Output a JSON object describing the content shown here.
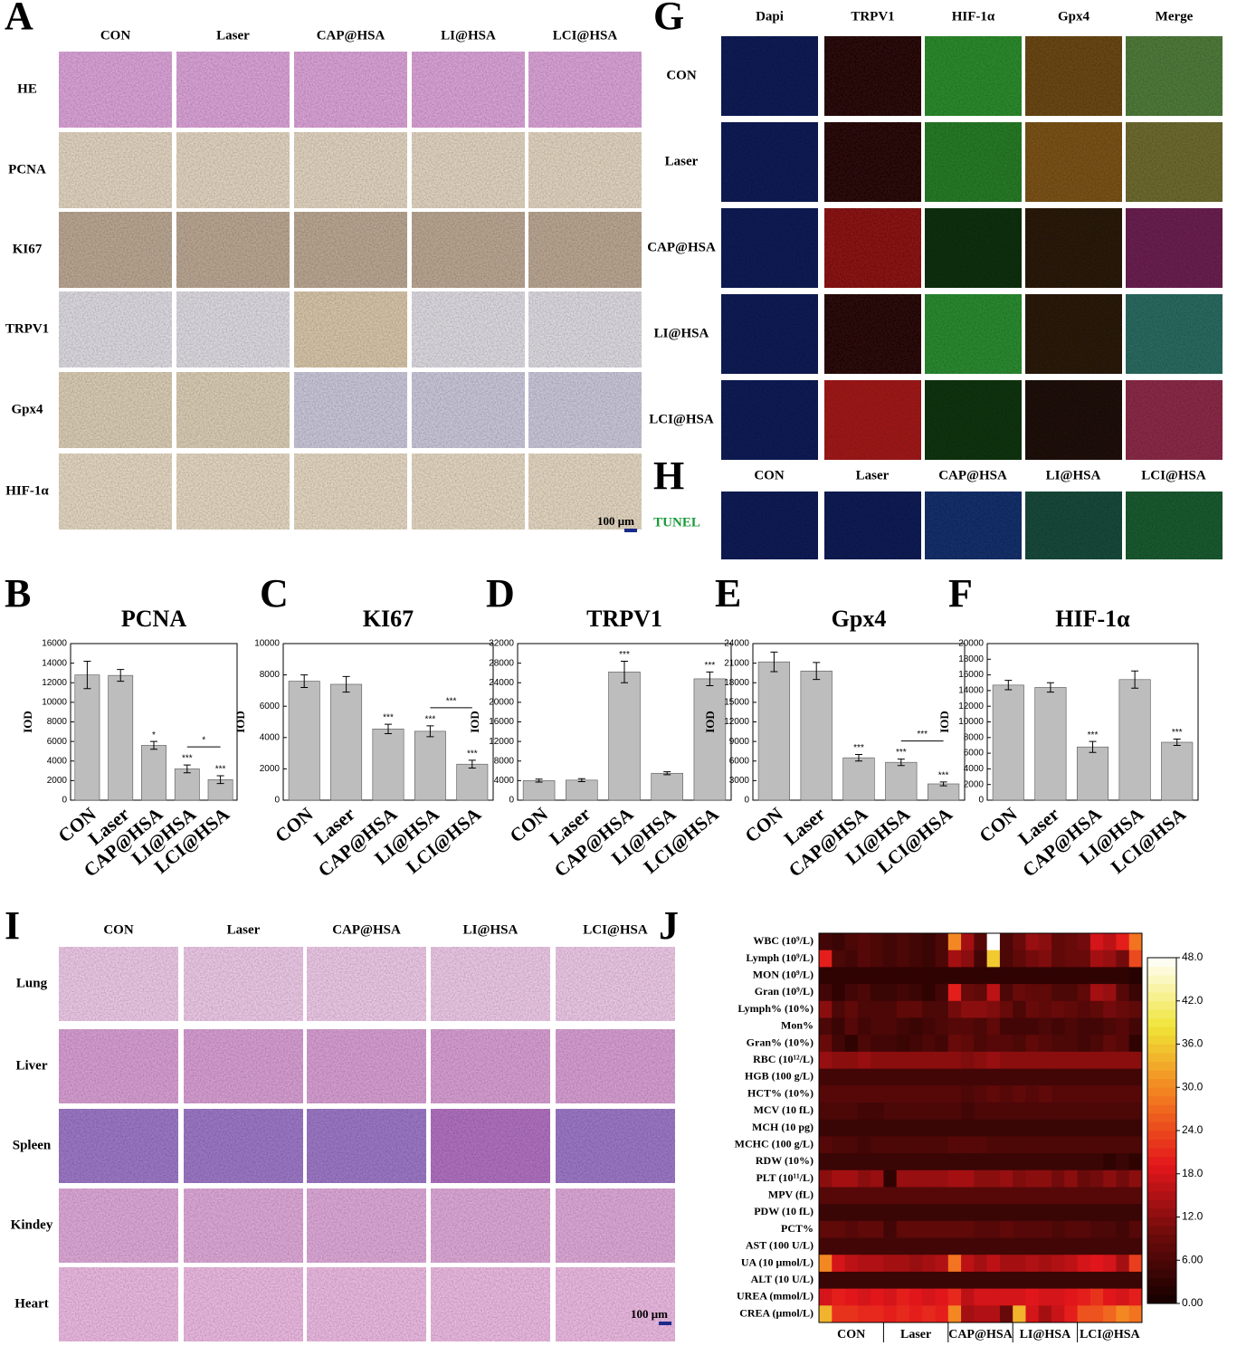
{
  "panel_a": {
    "letter": "A",
    "columns": [
      "CON",
      "Laser",
      "CAP@HSA",
      "LI@HSA",
      "LCI@HSA"
    ],
    "rows": [
      "HE",
      "PCNA",
      "KI67",
      "TRPV1",
      "Gpx4",
      "HIF-1α"
    ],
    "scale_bar": "100 μm"
  },
  "panel_g": {
    "letter": "G",
    "columns": [
      "Dapi",
      "TRPV1",
      "HIF-1α",
      "Gpx4",
      "Merge"
    ],
    "rows": [
      "CON",
      "Laser",
      "CAP@HSA",
      "LI@HSA",
      "LCI@HSA"
    ]
  },
  "panel_h": {
    "letter": "H",
    "columns": [
      "CON",
      "Laser",
      "CAP@HSA",
      "LI@HSA",
      "LCI@HSA"
    ],
    "rows": [
      "TUNEL"
    ]
  },
  "panel_i": {
    "letter": "I",
    "columns": [
      "CON",
      "Laser",
      "CAP@HSA",
      "LI@HSA",
      "LCI@HSA"
    ],
    "rows": [
      "Lung",
      "Liver",
      "Spleen",
      "Kindey",
      "Heart"
    ],
    "scale_bar": "100 μm"
  },
  "chart_data": [
    {
      "type": "bar",
      "panel": "B",
      "title": "PCNA",
      "y_label": "IOD",
      "categories": [
        "CON",
        "Laser",
        "CAP@HSA",
        "LI@HSA",
        "LCI@HSA"
      ],
      "values": [
        12800,
        12750,
        5600,
        3200,
        2100
      ],
      "errors": [
        1400,
        600,
        400,
        400,
        400
      ],
      "significance": [
        null,
        null,
        "*",
        "***",
        "***"
      ],
      "bracket_label": "*",
      "color": "#bdbdbd",
      "ylim": [
        0,
        16000
      ],
      "yticks": [
        0,
        2000,
        4000,
        6000,
        8000,
        10000,
        12000,
        14000,
        16000
      ]
    },
    {
      "type": "bar",
      "panel": "C",
      "title": "KI67",
      "y_label": "IOD",
      "categories": [
        "CON",
        "Laser",
        "CAP@HSA",
        "LI@HSA",
        "LCI@HSA"
      ],
      "values": [
        7600,
        7400,
        4550,
        4400,
        2300
      ],
      "errors": [
        400,
        500,
        300,
        350,
        250
      ],
      "significance": [
        null,
        null,
        "***",
        "***",
        "***"
      ],
      "bracket_label": "***",
      "color": "#bdbdbd",
      "ylim": [
        0,
        10000
      ],
      "yticks": [
        0,
        2000,
        4000,
        6000,
        8000,
        10000
      ]
    },
    {
      "type": "bar",
      "panel": "D",
      "title": "TRPV1",
      "y_label": "IOD",
      "categories": [
        "CON",
        "Laser",
        "CAP@HSA",
        "LI@HSA",
        "LCI@HSA"
      ],
      "values": [
        4000,
        4100,
        26200,
        5500,
        24800
      ],
      "errors": [
        300,
        300,
        2200,
        300,
        1400
      ],
      "significance": [
        null,
        null,
        "***",
        null,
        "***"
      ],
      "color": "#bdbdbd",
      "ylim": [
        0,
        32000
      ],
      "yticks": [
        0,
        4000,
        8000,
        12000,
        16000,
        20000,
        24000,
        28000,
        32000
      ]
    },
    {
      "type": "bar",
      "panel": "E",
      "title": "Gpx4",
      "y_label": "IOD",
      "categories": [
        "CON",
        "Laser",
        "CAP@HSA",
        "LI@HSA",
        "LCI@HSA"
      ],
      "values": [
        21200,
        19800,
        6500,
        5800,
        2500
      ],
      "errors": [
        1500,
        1300,
        500,
        500,
        300
      ],
      "significance": [
        null,
        null,
        "***",
        "***",
        "***"
      ],
      "bracket_label": "***",
      "color": "#bdbdbd",
      "ylim": [
        0,
        24000
      ],
      "yticks": [
        0,
        3000,
        6000,
        9000,
        12000,
        15000,
        18000,
        21000,
        24000
      ]
    },
    {
      "type": "bar",
      "panel": "F",
      "title": "HIF-1α",
      "y_label": "IOD",
      "categories": [
        "CON",
        "Laser",
        "CAP@HSA",
        "LI@HSA",
        "LCI@HSA"
      ],
      "values": [
        14700,
        14400,
        6800,
        15400,
        7400
      ],
      "errors": [
        600,
        600,
        700,
        1100,
        400
      ],
      "significance": [
        null,
        null,
        "***",
        null,
        "***"
      ],
      "color": "#bdbdbd",
      "ylim": [
        0,
        20000
      ],
      "yticks": [
        0,
        2000,
        4000,
        6000,
        8000,
        10000,
        12000,
        14000,
        16000,
        18000,
        20000
      ]
    },
    {
      "type": "heatmap",
      "panel": "J",
      "rows": [
        "WBC (10⁹/L)",
        "Lymph (10⁹/L)",
        "MON (10⁹/L)",
        "Gran (10⁹/L)",
        "Lymph% (10%)",
        "Mon%",
        "Gran% (10%)",
        "RBC (10¹²/L)",
        "HGB (100 g/L)",
        "HCT% (10%)",
        "MCV (10 fL)",
        "MCH (10 pg)",
        "MCHC (100 g/L)",
        "RDW (10%)",
        "PLT (10¹¹/L)",
        "MPV (fL)",
        "PDW (10 fL)",
        "PCT%",
        "AST (100 U/L)",
        "UA (10 μmol/L)",
        "ALT (10 U/L)",
        "UREA (mmol/L)",
        "CREA (μmol/L)"
      ],
      "column_groups": [
        "CON",
        "Laser",
        "CAP@HSA",
        "LI@HSA",
        "LCI@HSA"
      ],
      "values": [
        [
          5,
          4,
          6,
          7,
          6,
          5,
          6,
          5,
          4,
          6,
          30,
          14,
          7,
          48,
          6,
          9,
          13,
          12,
          8,
          9,
          10,
          18,
          16,
          20,
          28
        ],
        [
          20,
          6,
          5,
          7,
          6,
          5,
          6,
          5,
          4,
          6,
          14,
          12,
          5,
          36,
          6,
          8,
          10,
          11,
          8,
          9,
          9,
          14,
          13,
          10,
          24
        ],
        [
          3,
          3,
          3,
          3,
          3,
          3,
          3,
          3,
          3,
          3,
          3,
          3,
          3,
          3,
          3,
          3,
          3,
          3,
          3,
          3,
          3,
          3,
          3,
          3,
          2
        ],
        [
          5,
          3,
          5,
          6,
          4,
          4,
          5,
          4,
          3,
          5,
          20,
          9,
          8,
          16,
          6,
          9,
          8,
          8,
          6,
          6,
          8,
          14,
          13,
          7,
          4
        ],
        [
          12,
          6,
          8,
          6,
          6,
          6,
          8,
          8,
          6,
          6,
          10,
          12,
          12,
          11,
          9,
          6,
          9,
          8,
          9,
          8,
          7,
          8,
          10,
          9,
          8
        ],
        [
          6,
          4,
          7,
          5,
          6,
          6,
          5,
          4,
          5,
          6,
          7,
          7,
          6,
          8,
          5,
          5,
          5,
          6,
          5,
          6,
          5,
          5,
          6,
          7,
          5
        ],
        [
          9,
          5,
          3,
          6,
          5,
          5,
          4,
          5,
          6,
          5,
          9,
          8,
          6,
          7,
          7,
          6,
          8,
          7,
          6,
          6,
          5,
          6,
          8,
          7,
          3
        ],
        [
          13,
          12,
          12,
          13,
          12,
          12,
          12,
          12,
          12,
          12,
          12,
          11,
          12,
          13,
          12,
          12,
          12,
          12,
          12,
          12,
          12,
          12,
          12,
          12,
          12
        ],
        [
          5,
          5,
          5,
          5,
          5,
          5,
          5,
          5,
          5,
          5,
          5,
          5,
          5,
          5,
          5,
          5,
          5,
          5,
          5,
          5,
          5,
          5,
          5,
          5,
          5
        ],
        [
          7,
          7,
          7,
          7,
          7,
          7,
          7,
          7,
          7,
          7,
          7,
          6,
          7,
          8,
          7,
          8,
          7,
          8,
          7,
          7,
          7,
          7,
          7,
          7,
          7
        ],
        [
          6,
          6,
          6,
          5,
          5,
          6,
          6,
          6,
          6,
          6,
          6,
          5,
          6,
          6,
          6,
          6,
          6,
          6,
          6,
          6,
          6,
          6,
          6,
          6,
          6
        ],
        [
          4,
          4,
          4,
          4,
          4,
          4,
          4,
          4,
          4,
          4,
          4,
          4,
          4,
          4,
          4,
          4,
          4,
          4,
          4,
          4,
          4,
          4,
          4,
          4,
          4
        ],
        [
          7,
          6,
          6,
          5,
          6,
          6,
          6,
          6,
          6,
          6,
          7,
          7,
          7,
          6,
          6,
          6,
          6,
          6,
          6,
          6,
          6,
          6,
          6,
          6,
          6
        ],
        [
          4,
          4,
          4,
          4,
          4,
          4,
          4,
          4,
          4,
          4,
          4,
          4,
          4,
          4,
          4,
          4,
          4,
          4,
          4,
          4,
          4,
          4,
          3,
          4,
          3
        ],
        [
          12,
          14,
          14,
          12,
          13,
          3,
          13,
          13,
          13,
          13,
          14,
          14,
          12,
          12,
          13,
          11,
          12,
          12,
          10,
          12,
          9,
          10,
          12,
          10,
          12
        ],
        [
          7,
          7,
          7,
          7,
          7,
          7,
          7,
          7,
          7,
          7,
          7,
          7,
          7,
          7,
          7,
          7,
          7,
          7,
          7,
          7,
          7,
          7,
          7,
          7,
          7
        ],
        [
          4,
          4,
          4,
          4,
          4,
          4,
          4,
          4,
          4,
          4,
          4,
          4,
          4,
          4,
          4,
          4,
          4,
          4,
          4,
          4,
          4,
          4,
          4,
          4,
          4
        ],
        [
          8,
          8,
          7,
          8,
          8,
          5,
          8,
          8,
          8,
          8,
          8,
          8,
          7,
          7,
          8,
          7,
          7,
          7,
          6,
          7,
          7,
          6,
          6,
          5,
          7
        ],
        [
          5,
          5,
          5,
          5,
          5,
          5,
          5,
          5,
          5,
          5,
          5,
          5,
          5,
          5,
          5,
          5,
          5,
          5,
          5,
          5,
          5,
          5,
          5,
          5,
          5
        ],
        [
          30,
          18,
          16,
          15,
          15,
          14,
          14,
          13,
          14,
          15,
          28,
          16,
          14,
          16,
          14,
          14,
          15,
          14,
          15,
          16,
          18,
          19,
          18,
          14,
          23
        ],
        [
          4,
          4,
          4,
          4,
          4,
          4,
          4,
          4,
          4,
          4,
          4,
          4,
          4,
          4,
          4,
          4,
          4,
          4,
          4,
          4,
          4,
          4,
          4,
          4,
          4
        ],
        [
          18,
          20,
          19,
          18,
          19,
          18,
          20,
          19,
          18,
          19,
          21,
          16,
          18,
          18,
          18,
          18,
          19,
          18,
          18,
          19,
          20,
          22,
          19,
          18,
          20
        ],
        [
          34,
          22,
          22,
          21,
          21,
          20,
          21,
          20,
          21,
          20,
          30,
          14,
          15,
          15,
          9,
          34,
          18,
          14,
          17,
          20,
          25,
          25,
          27,
          30,
          28
        ]
      ],
      "zlim": [
        0,
        48
      ],
      "colorbar_ticks": [
        {
          "value": 0,
          "label": "0.00"
        },
        {
          "value": 6,
          "label": "6.00"
        },
        {
          "value": 12,
          "label": "12.0"
        },
        {
          "value": 18,
          "label": "18.0"
        },
        {
          "value": 24,
          "label": "24.0"
        },
        {
          "value": 30,
          "label": "30.0"
        },
        {
          "value": 36,
          "label": "36.0"
        },
        {
          "value": 42,
          "label": "42.0"
        },
        {
          "value": 48,
          "label": "48.0"
        }
      ],
      "colormap": [
        "#140000",
        "#6e0b0b",
        "#e3161b",
        "#f37b20",
        "#f0e436",
        "#ffffff"
      ]
    }
  ]
}
